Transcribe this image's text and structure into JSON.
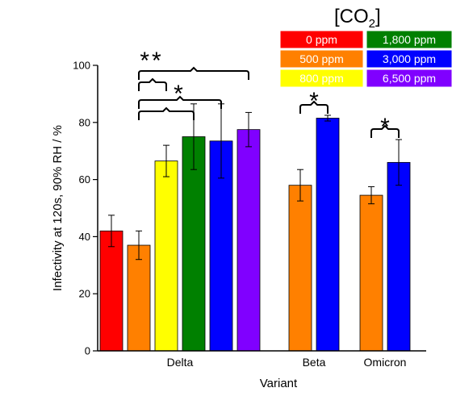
{
  "chart_data": {
    "type": "bar",
    "xlabel": "Variant",
    "ylabel": "Infectivity at 120s, 90% RH / %",
    "ylim": [
      0,
      100
    ],
    "yticks": [
      0,
      20,
      40,
      60,
      80,
      100
    ],
    "legend": {
      "title_main": "[CO",
      "title_sub": "2",
      "title_end": "]",
      "placement": "top-right",
      "entries": [
        {
          "name": "0 ppm",
          "color": "#ff0000"
        },
        {
          "name": "1,800 ppm",
          "color": "#008000"
        },
        {
          "name": "500 ppm",
          "color": "#ff8000"
        },
        {
          "name": "3,000 ppm",
          "color": "#0000ff"
        },
        {
          "name": "800 ppm",
          "color": "#ffff00"
        },
        {
          "name": "6,500 ppm",
          "color": "#8000ff"
        }
      ]
    },
    "groups": [
      {
        "name": "Delta",
        "bars": [
          {
            "series": "0 ppm",
            "color": "#ff0000",
            "value": 42,
            "err": 5.5
          },
          {
            "series": "500 ppm",
            "color": "#ff8000",
            "value": 37,
            "err": 5
          },
          {
            "series": "800 ppm",
            "color": "#ffff00",
            "value": 66.5,
            "err": 5.5
          },
          {
            "series": "1,800 ppm",
            "color": "#008000",
            "value": 75,
            "err": 11.5
          },
          {
            "series": "3,000 ppm",
            "color": "#0000ff",
            "value": 73.5,
            "err": 13
          },
          {
            "series": "6,500 ppm",
            "color": "#8000ff",
            "value": 77.5,
            "err": 6
          }
        ]
      },
      {
        "name": "Beta",
        "bars": [
          {
            "series": "500 ppm",
            "color": "#ff8000",
            "value": 58,
            "err": 5.5
          },
          {
            "series": "3,000 ppm",
            "color": "#0000ff",
            "value": 81.5,
            "err": 1
          }
        ]
      },
      {
        "name": "Omicron",
        "bars": [
          {
            "series": "500 ppm",
            "color": "#ff8000",
            "value": 54.5,
            "err": 3
          },
          {
            "series": "3,000 ppm",
            "color": "#0000ff",
            "value": 66,
            "err": 8
          }
        ]
      }
    ],
    "significance": [
      {
        "label": "**",
        "from": "Delta/500 ppm",
        "to": "Delta/6,500 ppm"
      },
      {
        "label": "",
        "from": "Delta/500 ppm",
        "to": "Delta/800 ppm"
      },
      {
        "label": "*",
        "from": "Delta/500 ppm",
        "to": "Delta/3,000 ppm"
      },
      {
        "label": "",
        "from": "Delta/500 ppm",
        "to": "Delta/1,800 ppm"
      },
      {
        "label": "*",
        "from": "Beta/500 ppm",
        "to": "Beta/3,000 ppm"
      },
      {
        "label": "*",
        "from": "Omicron/500 ppm",
        "to": "Omicron/3,000 ppm"
      }
    ]
  }
}
